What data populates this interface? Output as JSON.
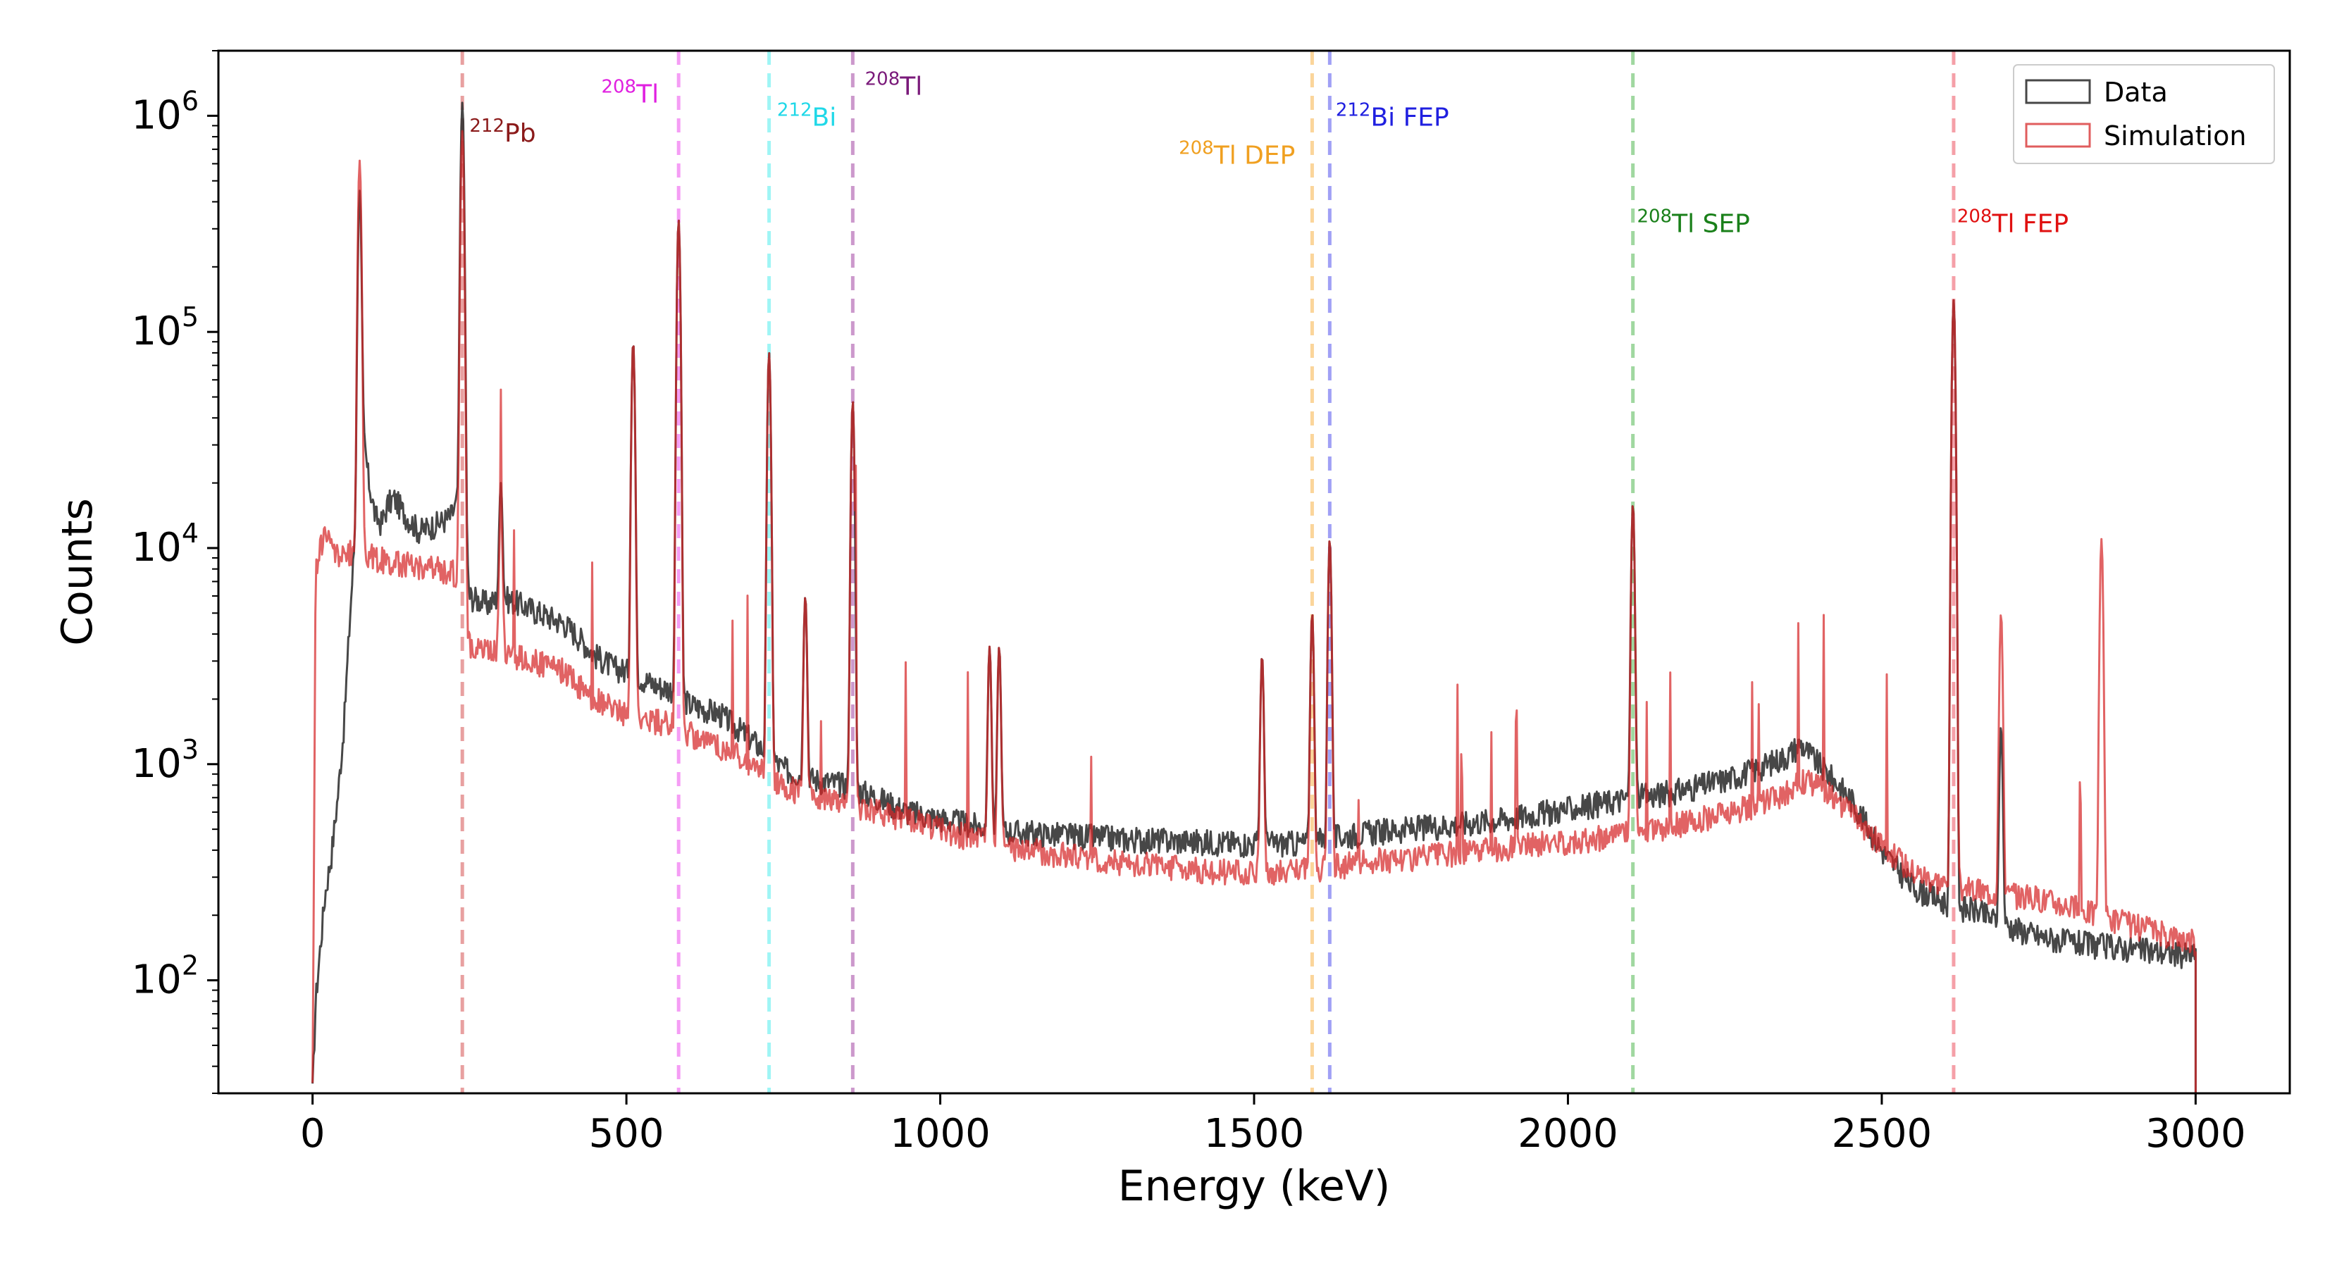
{
  "chart_data": {
    "type": "line",
    "xlabel": "Energy (keV)",
    "ylabel": "Counts",
    "xlim": [
      -150,
      3150
    ],
    "ylim": [
      30,
      2000000
    ],
    "yscale": "log",
    "grid": false,
    "legend_position": "top-right",
    "x_ticks": [
      {
        "value": 0,
        "label": "0"
      },
      {
        "value": 500,
        "label": "500"
      },
      {
        "value": 1000,
        "label": "1000"
      },
      {
        "value": 1500,
        "label": "1500"
      },
      {
        "value": 2000,
        "label": "2000"
      },
      {
        "value": 2500,
        "label": "2500"
      },
      {
        "value": 3000,
        "label": "3000"
      }
    ],
    "y_ticks": [
      {
        "value": 100,
        "base": "10",
        "exp": "2"
      },
      {
        "value": 1000,
        "base": "10",
        "exp": "3"
      },
      {
        "value": 10000,
        "base": "10",
        "exp": "4"
      },
      {
        "value": 100000,
        "base": "10",
        "exp": "5"
      },
      {
        "value": 1000000,
        "base": "10",
        "exp": "6"
      }
    ],
    "series": [
      {
        "name": "Data",
        "color": "#333333",
        "x": [
          0,
          5,
          10,
          20,
          30,
          40,
          50,
          60,
          70,
          80,
          90,
          100,
          110,
          120,
          130,
          150,
          170,
          200,
          220,
          238,
          250,
          280,
          300,
          350,
          400,
          420,
          450,
          480,
          500,
          550,
          580,
          600,
          650,
          700,
          750,
          800,
          850,
          900,
          950,
          1000,
          1100,
          1200,
          1300,
          1400,
          1500,
          1580,
          1650,
          1700,
          1800,
          1900,
          2000,
          2100,
          2150,
          2200,
          2250,
          2300,
          2350,
          2370,
          2400,
          2450,
          2500,
          2550,
          2600,
          2615,
          2650,
          2700,
          2750,
          2800,
          2900,
          3000
        ],
        "y": [
          30,
          80,
          120,
          250,
          380,
          700,
          1500,
          5000,
          15000,
          35000,
          20000,
          14000,
          13000,
          16000,
          17000,
          14000,
          12000,
          13000,
          14000,
          18000,
          6000,
          5500,
          6000,
          5200,
          4500,
          4000,
          3200,
          2800,
          2700,
          2300,
          2200,
          1900,
          1700,
          1300,
          950,
          850,
          800,
          700,
          600,
          560,
          490,
          470,
          450,
          440,
          430,
          430,
          470,
          490,
          520,
          560,
          620,
          700,
          730,
          780,
          850,
          950,
          1100,
          1250,
          1000,
          700,
          400,
          270,
          230,
          220,
          210,
          180,
          160,
          150,
          140,
          130
        ]
      },
      {
        "name": "Simulation",
        "color": "#d62728",
        "x": [
          0,
          5,
          10,
          20,
          30,
          50,
          70,
          100,
          130,
          150,
          200,
          238,
          250,
          300,
          350,
          400,
          450,
          500,
          580,
          600,
          650,
          700,
          750,
          800,
          850,
          900,
          950,
          1000,
          1100,
          1200,
          1300,
          1400,
          1500,
          1600,
          1700,
          1800,
          1900,
          2000,
          2100,
          2200,
          2300,
          2350,
          2380,
          2400,
          2450,
          2500,
          2550,
          2600,
          2615,
          2650,
          2700,
          2750,
          2800,
          2900,
          3000
        ],
        "y": [
          30,
          8000,
          9500,
          12000,
          10000,
          9000,
          10000,
          9000,
          8500,
          8500,
          8000,
          7500,
          3500,
          3300,
          3000,
          2700,
          2000,
          1700,
          1500,
          1400,
          1200,
          1000,
          800,
          700,
          650,
          600,
          560,
          500,
          420,
          380,
          350,
          330,
          310,
          330,
          360,
          380,
          410,
          440,
          480,
          550,
          650,
          750,
          850,
          800,
          600,
          420,
          320,
          280,
          270,
          260,
          250,
          240,
          220,
          180,
          150
        ]
      }
    ],
    "peaks": [
      {
        "energy": 75,
        "data": 450000,
        "sim": 620000,
        "color": "#a03030"
      },
      {
        "energy": 238.6,
        "data": 1150000,
        "sim": 850000,
        "color": "#a03030"
      },
      {
        "energy": 300,
        "data": 20000,
        "sim": 16000,
        "color": "#a03030"
      },
      {
        "energy": 510.8,
        "data": 90000,
        "sim": 90000,
        "color": "#a03030"
      },
      {
        "energy": 583.2,
        "data": 330000,
        "sim": 330000,
        "color": "#a03030"
      },
      {
        "energy": 727.3,
        "data": 80000,
        "sim": 80000,
        "color": "#a03030"
      },
      {
        "energy": 785,
        "data": 6000,
        "sim": 6000,
        "color": "#d62728"
      },
      {
        "energy": 860.6,
        "data": 48000,
        "sim": 48000,
        "color": "#a03030"
      },
      {
        "energy": 1078.6,
        "data": 3500,
        "sim": 3500,
        "color": "#d62728"
      },
      {
        "energy": 1093.9,
        "data": 3500,
        "sim": 3500,
        "color": "#d62728"
      },
      {
        "energy": 1512.7,
        "data": 3200,
        "sim": 3200,
        "color": "#d62728"
      },
      {
        "energy": 1592.5,
        "data": 5000,
        "sim": 5000,
        "color": "#a03030"
      },
      {
        "energy": 1620.5,
        "data": 11000,
        "sim": 11000,
        "color": "#a03030"
      },
      {
        "energy": 2103.5,
        "data": 16000,
        "sim": 16000,
        "color": "#a03030"
      },
      {
        "energy": 2614.5,
        "data": 140000,
        "sim": 140000,
        "color": "#a03030"
      },
      {
        "energy": 2690,
        "data": 1500,
        "sim": 5000,
        "color": "#d62728"
      },
      {
        "energy": 2850,
        "data": 160,
        "sim": 11000,
        "color": "#d62728"
      }
    ],
    "reference_lines": [
      {
        "energy": 238.6,
        "color": "#e8a0a0",
        "label_base": "Pb",
        "label_sup": "212",
        "text_color": "#8b1a1a",
        "label_x": 250,
        "label_y": 760000
      },
      {
        "energy": 583.2,
        "color": "#f59df5",
        "label_base": "Tl",
        "label_sup": "208",
        "text_color": "#e020e0",
        "label_x": 460,
        "label_y": 1150000
      },
      {
        "energy": 727.3,
        "color": "#9ff5f5",
        "label_base": "Bi",
        "label_sup": "212",
        "text_color": "#20d8e8",
        "label_x": 740,
        "label_y": 900000
      },
      {
        "energy": 860.6,
        "color": "#cc99cc",
        "label_base": "Tl",
        "label_sup": "208",
        "text_color": "#7a1a7a",
        "label_x": 880,
        "label_y": 1250000
      },
      {
        "energy": 1592.5,
        "color": "#fbd59a",
        "label_base": "Tl DEP",
        "label_sup": "208",
        "text_color": "#f0a020",
        "label_x": 1380,
        "label_y": 600000
      },
      {
        "energy": 1620.5,
        "color": "#a0a0f5",
        "label_base": "Bi FEP",
        "label_sup": "212",
        "text_color": "#2020e0",
        "label_x": 1630,
        "label_y": 900000
      },
      {
        "energy": 2103.5,
        "color": "#a0d8a0",
        "label_base": "Tl SEP",
        "label_sup": "208",
        "text_color": "#1a801a",
        "label_x": 2110,
        "label_y": 290000
      },
      {
        "energy": 2614.5,
        "color": "#f5a0a8",
        "label_base": "Tl FEP",
        "label_sup": "208",
        "text_color": "#e01010",
        "label_x": 2620,
        "label_y": 290000
      }
    ]
  }
}
